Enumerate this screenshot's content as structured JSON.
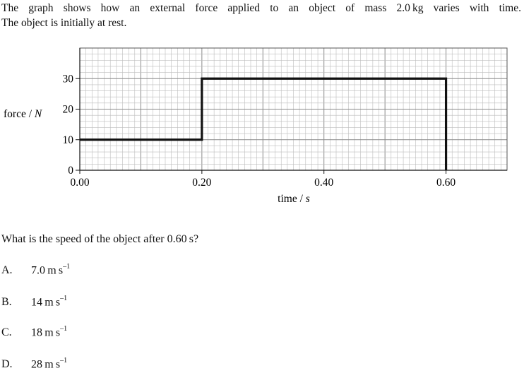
{
  "intro": {
    "line1": "The graph shows how an external force applied to an object of mass 2.0 kg varies with time.",
    "line2": "The object is initially at rest."
  },
  "chart_data": {
    "type": "line",
    "xlabel": "time / s",
    "ylabel": "force / N",
    "xlim": [
      0,
      0.7
    ],
    "ylim": [
      0,
      40
    ],
    "grid": true,
    "x_ticks": [
      "0.00",
      "0.20",
      "0.40",
      "0.60"
    ],
    "y_ticks": [
      "0",
      "10",
      "20",
      "30"
    ],
    "series": [
      {
        "x": [
          0,
          0.2,
          0.2,
          0.6,
          0.6
        ],
        "y": [
          10,
          10,
          30,
          30,
          0
        ]
      }
    ],
    "colors": {
      "line": "#111111",
      "grid": "#bdbdbd"
    }
  },
  "question": "What is the speed of the object after 0.60 s?",
  "options": [
    {
      "letter": "A.",
      "value": "7.0 m s",
      "exp": "–1"
    },
    {
      "letter": "B.",
      "value": "14 m s",
      "exp": "–1"
    },
    {
      "letter": "C.",
      "value": "18 m s",
      "exp": "–1"
    },
    {
      "letter": "D.",
      "value": "28 m s",
      "exp": "–1"
    }
  ]
}
